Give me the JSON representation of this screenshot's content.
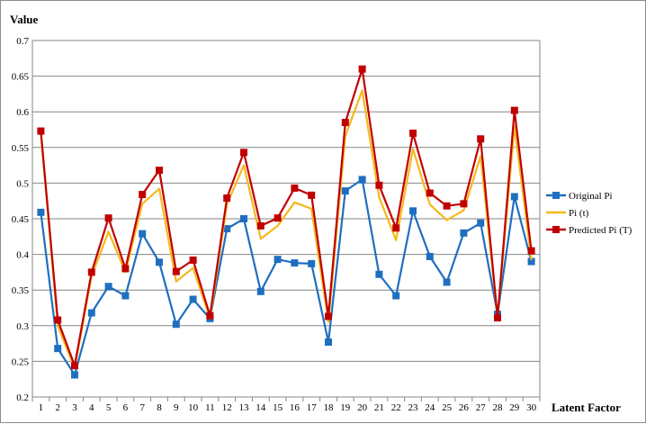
{
  "chart_data": {
    "type": "line",
    "ylabel": "Value",
    "xlabel": "Latent  Factor",
    "ylim": [
      0.2,
      0.7
    ],
    "yticks": [
      "0.2",
      "0.25",
      "0.3",
      "0.35",
      "0.4",
      "0.45",
      "0.5",
      "0.55",
      "0.6",
      "0.65",
      "0.7"
    ],
    "x": [
      1,
      2,
      3,
      4,
      5,
      6,
      7,
      8,
      9,
      10,
      11,
      12,
      13,
      14,
      15,
      16,
      17,
      18,
      19,
      20,
      21,
      22,
      23,
      24,
      25,
      26,
      27,
      28,
      29,
      30
    ],
    "grid": true,
    "legend_position": "right",
    "series": [
      {
        "name": "Original Pi",
        "color": "#1f6fc0",
        "marker": "square",
        "values": [
          0.459,
          0.268,
          0.231,
          0.318,
          0.355,
          0.342,
          0.429,
          0.389,
          0.302,
          0.337,
          0.31,
          0.436,
          0.45,
          0.348,
          0.393,
          0.388,
          0.387,
          0.277,
          0.489,
          0.505,
          0.372,
          0.342,
          0.461,
          0.397,
          0.361,
          0.43,
          0.444,
          0.316,
          0.481,
          0.39
        ]
      },
      {
        "name": "Pi (t)",
        "color": "#f5b81c",
        "marker": "none",
        "values": [
          0.57,
          0.3,
          0.24,
          0.37,
          0.432,
          0.375,
          0.471,
          0.492,
          0.362,
          0.381,
          0.31,
          0.47,
          0.525,
          0.422,
          0.44,
          0.473,
          0.464,
          0.305,
          0.566,
          0.63,
          0.48,
          0.42,
          0.548,
          0.47,
          0.448,
          0.462,
          0.538,
          0.312,
          0.58,
          0.392
        ]
      },
      {
        "name": "Predicted Pi (T)",
        "color": "#c00000",
        "marker": "square",
        "values": [
          0.573,
          0.308,
          0.244,
          0.375,
          0.451,
          0.38,
          0.484,
          0.518,
          0.376,
          0.392,
          0.314,
          0.479,
          0.543,
          0.44,
          0.451,
          0.493,
          0.483,
          0.313,
          0.585,
          0.66,
          0.497,
          0.437,
          0.57,
          0.486,
          0.468,
          0.471,
          0.562,
          0.311,
          0.602,
          0.405
        ]
      }
    ]
  }
}
